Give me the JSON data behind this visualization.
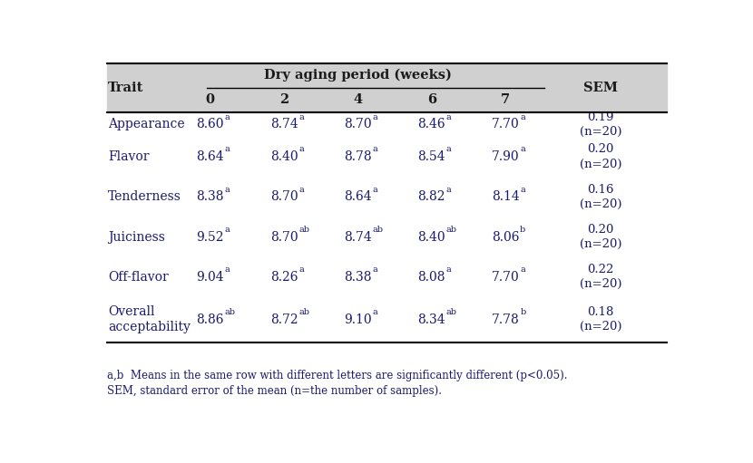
{
  "title": "Dry aging period (weeks)",
  "col_headers": [
    "0",
    "2",
    "4",
    "6",
    "7"
  ],
  "sem_header": "SEM",
  "trait_header": "Trait",
  "traits": [
    "Appearance",
    "Flavor",
    "Tenderness",
    "Juiciness",
    "Off-flavor",
    "Overall\nacceptability"
  ],
  "data": [
    [
      "8.60",
      "8.74",
      "8.70",
      "8.46",
      "7.70"
    ],
    [
      "8.64",
      "8.40",
      "8.78",
      "8.54",
      "7.90"
    ],
    [
      "8.38",
      "8.70",
      "8.64",
      "8.82",
      "8.14"
    ],
    [
      "9.52",
      "8.70",
      "8.74",
      "8.40",
      "8.06"
    ],
    [
      "9.04",
      "8.26",
      "8.38",
      "8.08",
      "7.70"
    ],
    [
      "8.86",
      "8.72",
      "9.10",
      "8.34",
      "7.78"
    ]
  ],
  "superscripts": [
    [
      "a",
      "a",
      "a",
      "a",
      "a"
    ],
    [
      "a",
      "a",
      "a",
      "a",
      "a"
    ],
    [
      "a",
      "a",
      "a",
      "a",
      "a"
    ],
    [
      "a",
      "ab",
      "ab",
      "ab",
      "b"
    ],
    [
      "a",
      "a",
      "a",
      "a",
      "a"
    ],
    [
      "ab",
      "ab",
      "a",
      "ab",
      "b"
    ]
  ],
  "sem_values": [
    "0.19\n(n=20)",
    "0.20\n(n=20)",
    "0.16\n(n=20)",
    "0.20\n(n=20)",
    "0.22\n(n=20)",
    "0.18\n(n=20)"
  ],
  "footnote1": "a,b  Means in the same row with different letters are significantly different (p<0.05).",
  "footnote2": "SEM, standard error of the mean (n=the number of samples).",
  "header_bg": "#d0d0d0",
  "body_bg": "#ffffff",
  "text_color": "#1a1a6e",
  "header_text_color": "#1a1a1a",
  "sem_color": "#1a1a6e",
  "header_fontsize": 10.5,
  "body_fontsize": 10,
  "footnote_fontsize": 8.5,
  "sup_fontsize": 7
}
